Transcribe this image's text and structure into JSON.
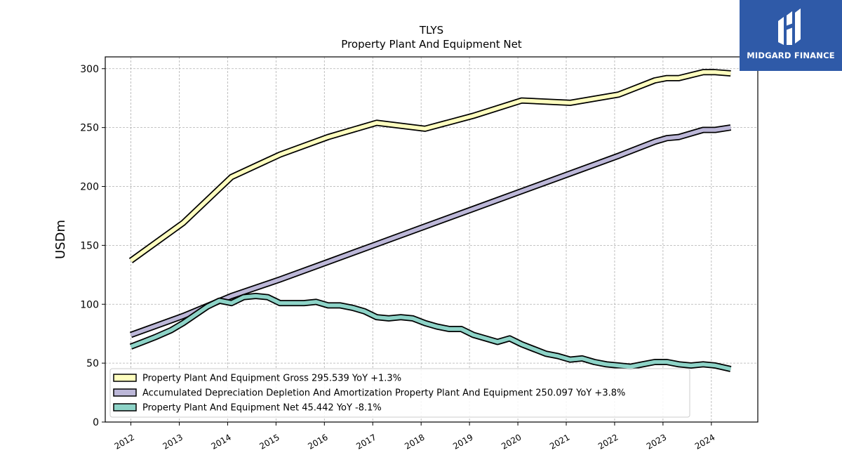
{
  "brand": {
    "name": "MIDGARD FINANCE",
    "logo_color": "#2f5aa8"
  },
  "chart_data": {
    "type": "line",
    "title": "TLYS",
    "subtitle": "Property Plant And Equipment Net",
    "xlabel": "",
    "ylabel": "USDm",
    "ylim": [
      0,
      310
    ],
    "xlim": [
      2011.47,
      2024.96
    ],
    "yticks": [
      0,
      50,
      100,
      150,
      200,
      250,
      300
    ],
    "xticks": [
      "2012",
      "2013",
      "2014",
      "2015",
      "2016",
      "2017",
      "2018",
      "2019",
      "2020",
      "2021",
      "2022",
      "2023",
      "2024"
    ],
    "grid": true,
    "legend_position": "lower-left",
    "series": [
      {
        "name": "Property Plant And Equipment Gross  295.539 YoY +1.3%",
        "color": "#ffffbf",
        "x": [
          2012.0,
          2013.08,
          2014.08,
          2015.08,
          2016.08,
          2017.08,
          2018.08,
          2019.08,
          2020.08,
          2021.08,
          2022.08,
          2022.83,
          2023.08,
          2023.33,
          2023.83,
          2024.08,
          2024.4
        ],
        "values": [
          137,
          169,
          208,
          227,
          242,
          254,
          249,
          260,
          273,
          271,
          278,
          290,
          292,
          292,
          297,
          297,
          296
        ]
      },
      {
        "name": "Accumulated Depreciation Depletion And Amortization Property Plant And Equipment  250.097 YoY +3.8%",
        "color": "#bcb7d8",
        "x": [
          2012.0,
          2013.08,
          2014.08,
          2015.08,
          2016.08,
          2017.08,
          2018.08,
          2019.08,
          2020.08,
          2021.08,
          2022.08,
          2022.83,
          2023.08,
          2023.33,
          2023.83,
          2024.08,
          2024.4
        ],
        "values": [
          74,
          90,
          107,
          121,
          136,
          151,
          166,
          181,
          196,
          211,
          226,
          238,
          241,
          242,
          248,
          248,
          250
        ]
      },
      {
        "name": "Property Plant And Equipment Net  45.442 YoY -8.1%",
        "color": "#8dd3c7",
        "x": [
          2012.0,
          2012.25,
          2012.5,
          2012.83,
          2013.08,
          2013.33,
          2013.58,
          2013.83,
          2014.08,
          2014.33,
          2014.58,
          2014.83,
          2015.08,
          2015.33,
          2015.58,
          2015.83,
          2016.08,
          2016.33,
          2016.58,
          2016.83,
          2017.08,
          2017.33,
          2017.58,
          2017.83,
          2018.08,
          2018.33,
          2018.58,
          2018.83,
          2019.08,
          2019.33,
          2019.58,
          2019.83,
          2020.08,
          2020.33,
          2020.58,
          2020.83,
          2021.08,
          2021.33,
          2021.58,
          2021.83,
          2022.08,
          2022.33,
          2022.58,
          2022.83,
          2023.08,
          2023.33,
          2023.58,
          2023.83,
          2024.08,
          2024.4
        ],
        "values": [
          64,
          68,
          72,
          78,
          84,
          91,
          98,
          103,
          101,
          106,
          107,
          106,
          101,
          101,
          101,
          102,
          99,
          99,
          97,
          94,
          89,
          88,
          89,
          88,
          84,
          81,
          79,
          79,
          74,
          71,
          68,
          71,
          66,
          62,
          58,
          56,
          53,
          54,
          51,
          49,
          48,
          47,
          49,
          51,
          51,
          49,
          48,
          49,
          48,
          45
        ]
      }
    ]
  }
}
